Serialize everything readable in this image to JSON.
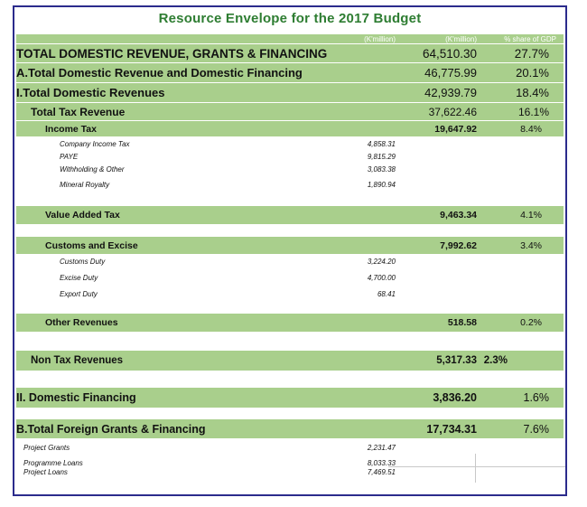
{
  "title": "Resource Envelope for the 2017 Budget",
  "headers": {
    "col1": "(K'million)",
    "col2": "(K'million)",
    "col3": "% share of GDP"
  },
  "rows": {
    "r1": {
      "label": "TOTAL DOMESTIC REVENUE, GRANTS & FINANCING",
      "amount": "64,510.30",
      "share": "27.7%"
    },
    "r2": {
      "label": "A.Total Domestic Revenue and Domestic Financing",
      "amount": "46,775.99",
      "share": "20.1%"
    },
    "r3": {
      "label": "I.Total Domestic Revenues",
      "amount": "42,939.79",
      "share": "18.4%"
    },
    "r4": {
      "label": "Total Tax Revenue",
      "amount": "37,622.46",
      "share": "16.1%"
    },
    "r5": {
      "label": "Income Tax",
      "amount": "19,647.92",
      "share": "8.4%"
    },
    "r6": {
      "label": "Company Income Tax",
      "sub": "4,858.31"
    },
    "r7": {
      "label": "PAYE",
      "sub": "9,815.29"
    },
    "r8": {
      "label": "Withholding & Other",
      "sub": "3,083.38"
    },
    "r9": {
      "label": "Mineral Royalty",
      "sub": "1,890.94"
    },
    "r10": {
      "label": "Value Added Tax",
      "amount": "9,463.34",
      "share": "4.1%"
    },
    "r11": {
      "label": "Customs and Excise",
      "amount": "7,992.62",
      "share": "3.4%"
    },
    "r12": {
      "label": "Customs Duty",
      "sub": "3,224.20"
    },
    "r13": {
      "label": "Excise Duty",
      "sub": "4,700.00"
    },
    "r14": {
      "label": "Export Duty",
      "sub": "68.41"
    },
    "r15": {
      "label": "Other Revenues",
      "amount": "518.58",
      "share": "0.2%"
    },
    "r16": {
      "label": "Non Tax Revenues",
      "amount": "5,317.33",
      "share": "2.3%"
    },
    "r17": {
      "label": "II. Domestic Financing",
      "amount": "3,836.20",
      "share": "1.6%"
    },
    "r18": {
      "label": "B.Total Foreign Grants & Financing",
      "amount": "17,734.31",
      "share": "7.6%"
    },
    "r19": {
      "label": "Project Grants",
      "sub": "2,231.47"
    },
    "r20": {
      "label": "Programme Loans",
      "sub": "8,033.33"
    },
    "r21": {
      "label": "Project Loans",
      "sub": "7,469.51"
    }
  }
}
